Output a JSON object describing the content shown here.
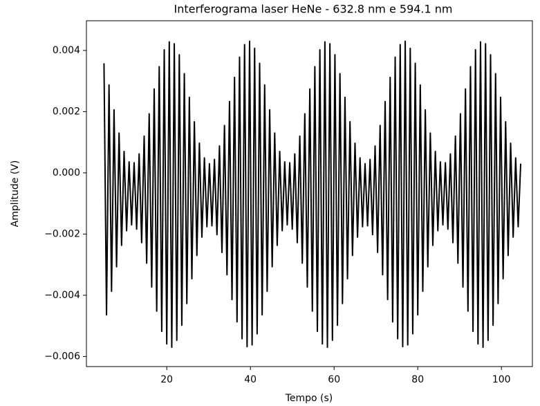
{
  "chart_data": {
    "type": "line",
    "title": "Interferograma laser HeNe - 632.8 nm e 594.1 nm",
    "xlabel": "Tempo (s)",
    "ylabel": "Amplitude (V)",
    "color": "#000000",
    "x": [
      5,
      5.6,
      6.2,
      6.8,
      7.4,
      8,
      8.6,
      9.2,
      9.8,
      10.4,
      11,
      11.6,
      12.2,
      12.8,
      13.4,
      14,
      14.6,
      15.2,
      15.8,
      16.4,
      17,
      17.6,
      18.2,
      18.8,
      19.4,
      20,
      20.6,
      21.2,
      21.8,
      22.4,
      23,
      23.6,
      24.2,
      24.8,
      25.4,
      26,
      26.6,
      27.2,
      27.8,
      28.4,
      29,
      29.6,
      30.2,
      30.8,
      31.4,
      32,
      32.6,
      33.2,
      33.8,
      34.4,
      35,
      35.6,
      36.2,
      36.8,
      37.4,
      38,
      38.6,
      39.2,
      39.8,
      40.4,
      41,
      41.6,
      42.2,
      42.8,
      43.4,
      44,
      44.6,
      45.2,
      45.8,
      46.4,
      47,
      47.6,
      48.2,
      48.8,
      49.4,
      50,
      50.6,
      51.2,
      51.8,
      52.4,
      53,
      53.6,
      54.2,
      54.8,
      55.4,
      56,
      56.6,
      57.2,
      57.8,
      58.4,
      59,
      59.6,
      60.2,
      60.8,
      61.4,
      62,
      62.6,
      63.2,
      63.8,
      64.4,
      65,
      65.6,
      66.2,
      66.8,
      67.4,
      68,
      68.6,
      69.2,
      69.8,
      70.4,
      71,
      71.6,
      72.2,
      72.8,
      73.4,
      74,
      74.6,
      75.2,
      75.8,
      76.4,
      77,
      77.6,
      78.2,
      78.8,
      79.4,
      80,
      80.6,
      81.2,
      81.8,
      82.4,
      83,
      83.6,
      84.2,
      84.8,
      85.4,
      86,
      86.6,
      87.2,
      87.8,
      88.4,
      89,
      89.6,
      90.2,
      90.8,
      91.4,
      92,
      92.6,
      93.2,
      93.8,
      94.4,
      95,
      95.6,
      96.2,
      96.8,
      97.4,
      98,
      98.6,
      99.2,
      99.8,
      100.4,
      101,
      101.6,
      102.2,
      102.8,
      103.4,
      104,
      104.6
    ],
    "values": [
      0.00358,
      -0.00464,
      0.00287,
      -0.00387,
      0.00206,
      -0.00307,
      0.0013,
      -0.00237,
      0.0007,
      -0.00189,
      0.00036,
      -0.0017,
      0.00033,
      -0.00184,
      0.00062,
      -0.00228,
      0.0012,
      -0.00295,
      0.00193,
      -0.00373,
      0.00274,
      -0.00452,
      0.00347,
      -0.00518,
      0.00402,
      -0.00559,
      0.00428,
      -0.0057,
      0.00422,
      -0.00547,
      0.00386,
      -0.00498,
      0.00324,
      -0.00427,
      0.00247,
      -0.00346,
      0.00167,
      -0.0027,
      0.00097,
      -0.0021,
      0.00049,
      -0.00176,
      0.0003,
      -0.00173,
      0.00044,
      -0.00202,
      0.00088,
      -0.0026,
      0.00155,
      -0.00333,
      0.00233,
      -0.00414,
      0.00312,
      -0.00487,
      0.00378,
      -0.00542,
      0.00419,
      -0.00568,
      0.0043,
      -0.00562,
      0.00407,
      -0.00526,
      0.00358,
      -0.00464,
      0.00287,
      -0.00387,
      0.00206,
      -0.00307,
      0.0013,
      -0.00237,
      0.0007,
      -0.00189,
      0.00036,
      -0.0017,
      0.00033,
      -0.00184,
      0.00062,
      -0.00228,
      0.0012,
      -0.00295,
      0.00193,
      -0.00373,
      0.00274,
      -0.00452,
      0.00347,
      -0.00518,
      0.00402,
      -0.00559,
      0.00428,
      -0.0057,
      0.00422,
      -0.00547,
      0.00386,
      -0.00498,
      0.00324,
      -0.00427,
      0.00247,
      -0.00346,
      0.00167,
      -0.0027,
      0.00097,
      -0.0021,
      0.00049,
      -0.00176,
      0.0003,
      -0.00173,
      0.00044,
      -0.00202,
      0.00088,
      -0.0026,
      0.00155,
      -0.00333,
      0.00233,
      -0.00414,
      0.00312,
      -0.00487,
      0.00378,
      -0.00542,
      0.00419,
      -0.00568,
      0.0043,
      -0.00562,
      0.00407,
      -0.00526,
      0.00358,
      -0.00464,
      0.00287,
      -0.00387,
      0.00206,
      -0.00307,
      0.0013,
      -0.00237,
      0.0007,
      -0.00189,
      0.00036,
      -0.0017,
      0.00033,
      -0.00184,
      0.00062,
      -0.00228,
      0.0012,
      -0.00295,
      0.00193,
      -0.00373,
      0.00274,
      -0.00452,
      0.00347,
      -0.00518,
      0.00402,
      -0.00559,
      0.00428,
      -0.0057,
      0.00422,
      -0.00547,
      0.00386,
      -0.00498,
      0.00324,
      -0.00427,
      0.00247,
      -0.00346,
      0.00167,
      -0.0027,
      0.00097,
      -0.0021,
      0.00049,
      -0.00176,
      0.0003
    ],
    "xlim": [
      0.8,
      107.4
    ],
    "xticks": [
      20,
      40,
      60,
      80,
      100
    ],
    "ylim": [
      -0.00633,
      0.00497
    ],
    "yticks": [
      {
        "value": -0.006,
        "label": "−0.006"
      },
      {
        "value": -0.004,
        "label": "−0.004"
      },
      {
        "value": -0.002,
        "label": "−0.002"
      },
      {
        "value": 0,
        "label": "0.000"
      },
      0.002,
      0.004
    ]
  }
}
